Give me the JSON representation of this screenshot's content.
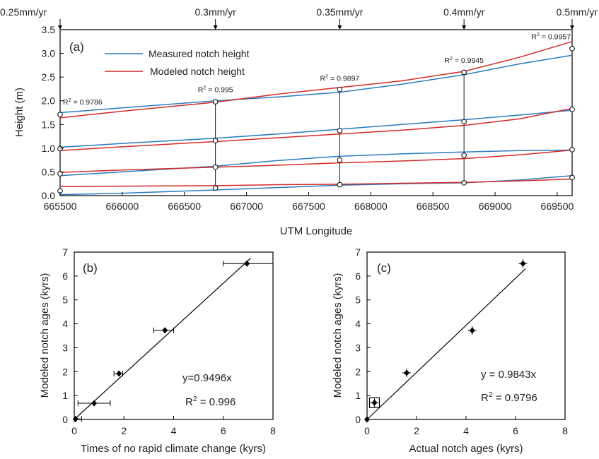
{
  "colors": {
    "measured": "#2b7bc0",
    "modeled": "#d42a2a",
    "axis": "#000000",
    "marker": "#000000"
  },
  "chart_data": [
    {
      "panel": "(a)",
      "type": "line",
      "xlabel": "UTM Longitude",
      "ylabel": "Height (m)",
      "xlim": [
        665500,
        669620
      ],
      "ylim": [
        0,
        3.5
      ],
      "xticks": [
        665500,
        666000,
        666500,
        667000,
        667500,
        668000,
        668500,
        669000,
        669500
      ],
      "yticks": [
        0.0,
        0.5,
        1.0,
        1.5,
        2.0,
        2.5,
        3.0,
        3.5
      ],
      "ytick_labels": [
        "0.0",
        "0.5",
        "1.0",
        "1.5",
        "2.0",
        "2.5",
        "3.0",
        "3.5"
      ],
      "legend": [
        {
          "label": "Measured notch height",
          "color_key": "measured"
        },
        {
          "label": "Modeled notch height",
          "color_key": "modeled"
        }
      ],
      "legend_position": "top-left",
      "top_rates": [
        {
          "label": "0.25mm/yr",
          "x": 665500
        },
        {
          "label": "0.3mm/yr",
          "x": 666750
        },
        {
          "label": "0.35mm/yr",
          "x": 667750
        },
        {
          "label": "0.4mm/yr",
          "x": 668750
        },
        {
          "label": "0.5mm/yr",
          "x": 669620
        }
      ],
      "r2_labels": [
        {
          "text": "R² = 0.9786",
          "x": 665500,
          "y": 1.92
        },
        {
          "text": "R² = 0.995",
          "x": 666750,
          "y": 2.18
        },
        {
          "text": "R² = 0.9897",
          "x": 667750,
          "y": 2.42
        },
        {
          "text": "R² = 0.9945",
          "x": 668750,
          "y": 2.8
        },
        {
          "text": "R² = 0.9957",
          "x": 669620,
          "y": 3.3
        }
      ],
      "profile_x": [
        665500,
        666750,
        667750,
        668750,
        669620
      ],
      "measured_notches": [
        [
          1.71,
          1.98,
          2.24,
          2.6,
          3.1
        ],
        [
          0.99,
          1.16,
          1.37,
          1.56,
          1.82
        ],
        [
          0.46,
          0.6,
          0.75,
          0.85,
          0.97
        ],
        [
          0.1,
          0.16,
          0.23,
          0.27,
          0.38
        ]
      ],
      "series": [
        {
          "name": "Measured notch height",
          "color_key": "measured",
          "lines": [
            {
              "x": [
                665500,
                666000,
                666750,
                667250,
                667750,
                668250,
                668750,
                669200,
                669620
              ],
              "y": [
                1.75,
                1.85,
                2.0,
                2.08,
                2.18,
                2.35,
                2.55,
                2.78,
                2.96
              ]
            },
            {
              "x": [
                665500,
                666000,
                666750,
                667250,
                667750,
                668250,
                668750,
                669200,
                669620
              ],
              "y": [
                1.02,
                1.1,
                1.21,
                1.3,
                1.4,
                1.5,
                1.6,
                1.7,
                1.8
              ]
            },
            {
              "x": [
                665500,
                666000,
                666750,
                667250,
                667750,
                668250,
                668750,
                669200,
                669620
              ],
              "y": [
                0.42,
                0.5,
                0.62,
                0.74,
                0.83,
                0.88,
                0.92,
                0.95,
                0.96
              ]
            },
            {
              "x": [
                665500,
                666000,
                666750,
                667250,
                667750,
                668250,
                668750,
                669200,
                669620
              ],
              "y": [
                0.02,
                0.05,
                0.12,
                0.17,
                0.22,
                0.25,
                0.27,
                0.33,
                0.42
              ]
            }
          ]
        },
        {
          "name": "Modeled notch height",
          "color_key": "modeled",
          "lines": [
            {
              "x": [
                665500,
                666000,
                666750,
                667250,
                667750,
                668250,
                668750,
                669200,
                669620
              ],
              "y": [
                1.64,
                1.78,
                1.97,
                2.14,
                2.28,
                2.42,
                2.62,
                2.92,
                3.25
              ]
            },
            {
              "x": [
                665500,
                666000,
                666750,
                667250,
                667750,
                668250,
                668750,
                669200,
                669620
              ],
              "y": [
                0.95,
                1.03,
                1.14,
                1.22,
                1.3,
                1.38,
                1.48,
                1.62,
                1.84
              ]
            },
            {
              "x": [
                665500,
                666000,
                666750,
                667250,
                667750,
                668250,
                668750,
                669200,
                669620
              ],
              "y": [
                0.49,
                0.54,
                0.6,
                0.64,
                0.69,
                0.73,
                0.78,
                0.86,
                0.96
              ]
            },
            {
              "x": [
                665500,
                666000,
                666750,
                667250,
                667750,
                668250,
                668750,
                669200,
                669620
              ],
              "y": [
                0.19,
                0.2,
                0.21,
                0.23,
                0.24,
                0.26,
                0.28,
                0.31,
                0.35
              ]
            }
          ]
        }
      ]
    },
    {
      "panel": "(b)",
      "type": "scatter",
      "xlabel": "Times of no rapid climate change (kyrs)",
      "ylabel": "Modeled notch ages (kyrs)",
      "xlim": [
        0,
        8
      ],
      "ylim": [
        0,
        7
      ],
      "xticks": [
        0,
        2,
        4,
        6,
        8
      ],
      "yticks": [
        0,
        1,
        2,
        3,
        4,
        5,
        6,
        7
      ],
      "points": [
        {
          "x": 0.05,
          "y": 0.02,
          "xerr": [
            0,
            0.3
          ]
        },
        {
          "x": 0.8,
          "y": 0.68,
          "xerr": [
            0.15,
            1.45
          ]
        },
        {
          "x": 1.8,
          "y": 1.92,
          "xerr": [
            1.6,
            1.95
          ]
        },
        {
          "x": 3.65,
          "y": 3.73,
          "xerr": [
            3.2,
            4.0
          ]
        },
        {
          "x": 6.95,
          "y": 6.52,
          "xerr": [
            6.0,
            8.0
          ]
        }
      ],
      "fit": {
        "slope": 0.9496,
        "x_end": 7.1
      },
      "equation": "y=0.9496x",
      "r2": "R² = 0.996"
    },
    {
      "panel": "(c)",
      "type": "scatter",
      "xlabel": "Actual notch ages (kyrs)",
      "ylabel": "Modeled notch ages (kyrs)",
      "xlim": [
        0,
        8
      ],
      "ylim": [
        0,
        7
      ],
      "xticks": [
        0,
        2,
        4,
        6,
        8
      ],
      "yticks": [
        0,
        1,
        2,
        3,
        4,
        5,
        6,
        7
      ],
      "points": [
        {
          "x": 0.0,
          "y": 0.0
        },
        {
          "x": 0.3,
          "y": 0.7,
          "boxed": true
        },
        {
          "x": 1.6,
          "y": 1.95
        },
        {
          "x": 4.25,
          "y": 3.72
        },
        {
          "x": 6.3,
          "y": 6.52
        }
      ],
      "fit": {
        "slope": 0.9843,
        "x_end": 6.4
      },
      "equation": "y = 0.9843x",
      "r2": "R² = 0.9796"
    }
  ]
}
